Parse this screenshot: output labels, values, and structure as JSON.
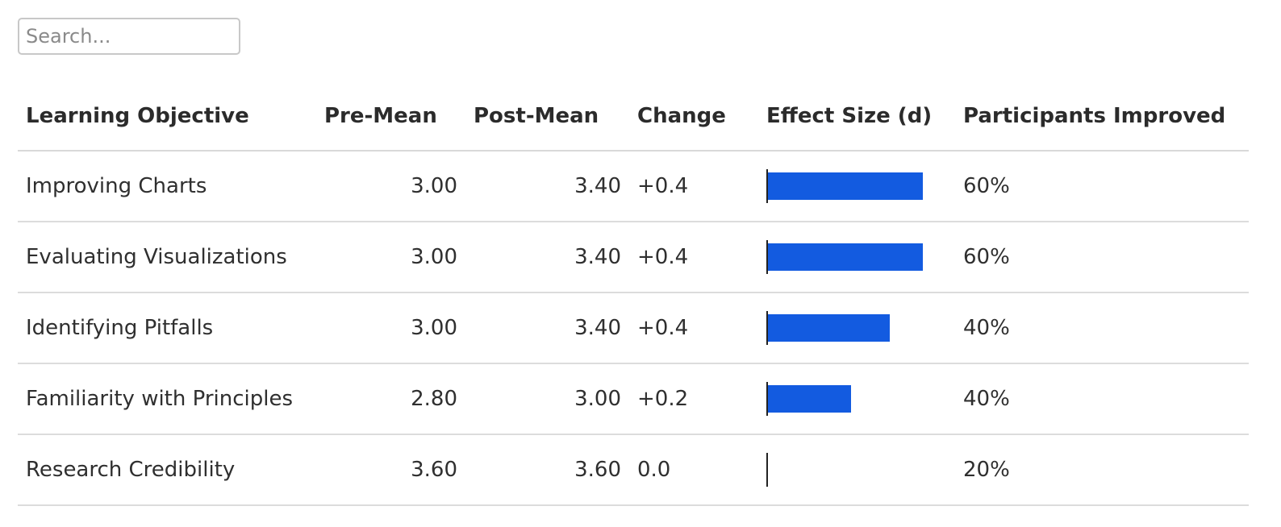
{
  "search": {
    "placeholder": "Search..."
  },
  "table": {
    "headers": [
      "Learning Objective",
      "Pre-Mean",
      "Post-Mean",
      "Change",
      "Effect Size (d)",
      "Participants Improved"
    ],
    "effect_max": 1.0,
    "rows": [
      {
        "objective": "Improving Charts",
        "pre": "3.00",
        "post": "3.40",
        "change": "+0.4",
        "effect": 0.8,
        "improved": "60%"
      },
      {
        "objective": "Evaluating Visualizations",
        "pre": "3.00",
        "post": "3.40",
        "change": "+0.4",
        "effect": 0.8,
        "improved": "60%"
      },
      {
        "objective": "Identifying Pitfalls",
        "pre": "3.00",
        "post": "3.40",
        "change": "+0.4",
        "effect": 0.63,
        "improved": "40%"
      },
      {
        "objective": "Familiarity with Principles",
        "pre": "2.80",
        "post": "3.00",
        "change": "+0.2",
        "effect": 0.43,
        "improved": "40%"
      },
      {
        "objective": "Research Credibility",
        "pre": "3.60",
        "post": "3.60",
        "change": "0.0",
        "effect": 0.0,
        "improved": "20%"
      }
    ]
  },
  "colors": {
    "bar": "#135be0",
    "border": "#dcdcdc"
  }
}
